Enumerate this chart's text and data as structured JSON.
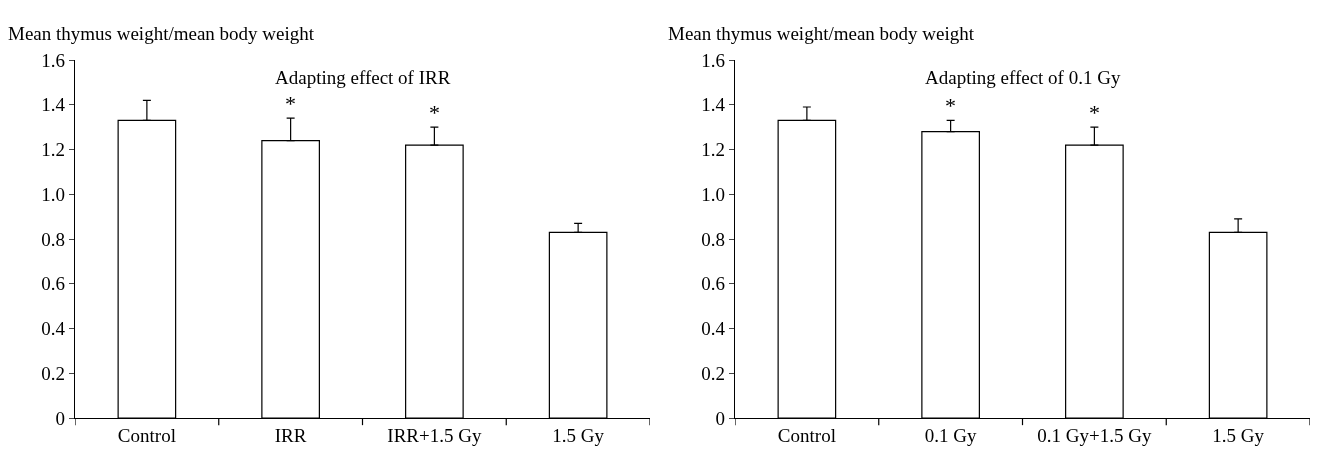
{
  "chart_data": [
    {
      "type": "bar",
      "title": "Adapting effect of IRR",
      "ylabel": "Mean thymus weight/mean body weight",
      "categories": [
        "Control",
        "IRR",
        "IRR+1.5 Gy",
        "1.5 Gy"
      ],
      "values": [
        1.33,
        1.24,
        1.22,
        0.83
      ],
      "color": "#ffffff",
      "errors": [
        [
          1.33,
          1.42
        ],
        [
          1.24,
          1.34
        ],
        [
          1.22,
          1.3
        ],
        [
          0.83,
          0.87
        ]
      ],
      "ylim": [
        0,
        1.6
      ],
      "yticks": [
        0,
        0.2,
        0.4,
        0.6,
        0.8,
        {
          "value": 1,
          "label": "1.0"
        },
        1.2,
        1.4,
        1.6
      ],
      "grid": false,
      "legend": false,
      "annotations": [
        {
          "text": "*",
          "x": "IRR",
          "y": 1.34
        },
        {
          "text": "*",
          "x": "IRR+1.5 Gy",
          "y": 1.3
        }
      ]
    },
    {
      "type": "bar",
      "title": "Adapting effect of 0.1 Gy",
      "ylabel": "Mean thymus weight/mean body weight",
      "categories": [
        "Control",
        "0.1 Gy",
        "0.1 Gy+1.5 Gy",
        "1.5 Gy"
      ],
      "values": [
        1.33,
        1.28,
        1.22,
        0.83
      ],
      "color": "#ffffff",
      "errors": [
        [
          1.33,
          1.39
        ],
        [
          1.28,
          1.33
        ],
        [
          1.22,
          1.3
        ],
        [
          0.83,
          0.89
        ]
      ],
      "ylim": [
        0,
        1.6
      ],
      "yticks": [
        0,
        0.2,
        0.4,
        0.6,
        0.8,
        {
          "value": 1,
          "label": "1.0"
        },
        1.2,
        1.4,
        1.6
      ],
      "grid": false,
      "legend": false,
      "annotations": [
        {
          "text": "*",
          "x": "0.1 Gy",
          "y": 1.33
        },
        {
          "text": "*",
          "x": "0.1 Gy+1.5 Gy",
          "y": 1.3
        }
      ]
    }
  ]
}
